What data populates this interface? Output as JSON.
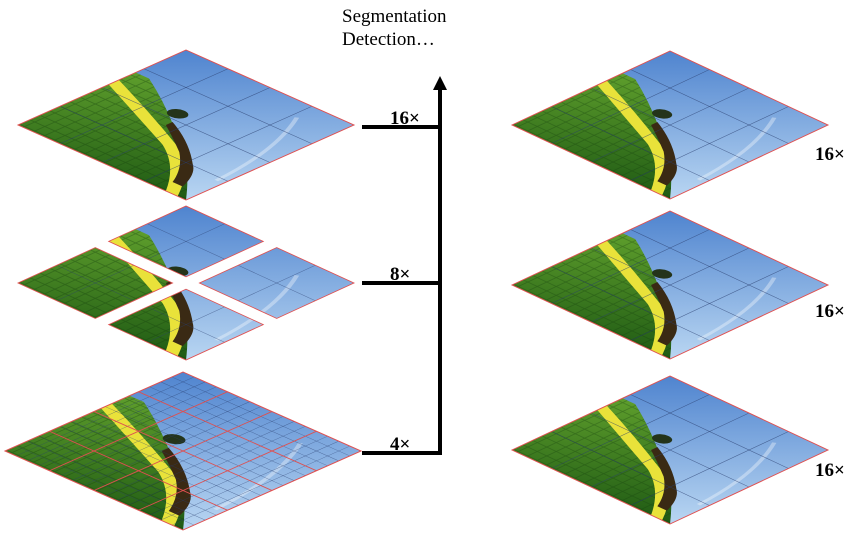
{
  "colors": {
    "sky_top": "#4f84cf",
    "sky_bottom": "#b9d6f2",
    "field_dark": "#1f5a14",
    "field_light": "#5e9e2c",
    "yellow_band": "#e9e23a",
    "tree": "#24341a",
    "soil": "#3a2a14",
    "patch_border": "#e05050",
    "fine_grid": "#2a3d6e",
    "arrow": "#000000"
  },
  "task_labels": [
    "Segmentation",
    "Detection…"
  ],
  "left_stack": [
    {
      "name": "16x",
      "label": "16×",
      "patch_div": 4,
      "window_div": 1,
      "split": false
    },
    {
      "name": "8x",
      "label": "8×",
      "patch_div": 4,
      "window_div": 2,
      "split": true
    },
    {
      "name": "4x",
      "label": "4×",
      "patch_div": 16,
      "window_div": 4,
      "split": false
    }
  ],
  "right_stack": [
    {
      "name": "16x-a",
      "label": "16×",
      "patch_div": 4
    },
    {
      "name": "16x-b",
      "label": "16×",
      "patch_div": 4
    },
    {
      "name": "16x-c",
      "label": "16×",
      "patch_div": 4
    }
  ]
}
